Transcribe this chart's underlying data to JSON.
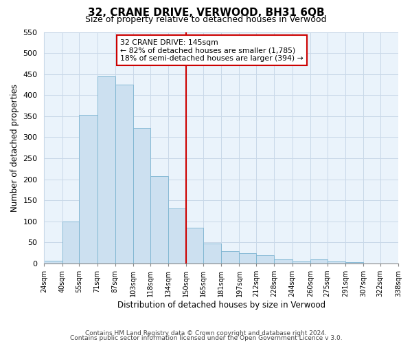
{
  "title": "32, CRANE DRIVE, VERWOOD, BH31 6QB",
  "subtitle": "Size of property relative to detached houses in Verwood",
  "xlabel": "Distribution of detached houses by size in Verwood",
  "ylabel": "Number of detached properties",
  "bar_color": "#cce0f0",
  "bar_edge_color": "#7ab3d0",
  "highlight_color": "#cc0000",
  "bar_heights": [
    7,
    100,
    353,
    445,
    425,
    322,
    208,
    130,
    85,
    48,
    29,
    25,
    19,
    10,
    5,
    10,
    5,
    3
  ],
  "x_tick_labels": [
    "24sqm",
    "40sqm",
    "55sqm",
    "71sqm",
    "87sqm",
    "103sqm",
    "118sqm",
    "134sqm",
    "150sqm",
    "165sqm",
    "181sqm",
    "197sqm",
    "212sqm",
    "228sqm",
    "244sqm",
    "260sqm",
    "275sqm",
    "291sqm",
    "307sqm",
    "322sqm",
    "338sqm"
  ],
  "x_tick_positions": [
    24,
    40,
    55,
    71,
    87,
    103,
    118,
    134,
    150,
    165,
    181,
    197,
    212,
    228,
    244,
    260,
    275,
    291,
    307,
    322,
    338
  ],
  "ylim": [
    0,
    550
  ],
  "yticks": [
    0,
    50,
    100,
    150,
    200,
    250,
    300,
    350,
    400,
    450,
    500,
    550
  ],
  "vline_x": 150,
  "annotation_title": "32 CRANE DRIVE: 145sqm",
  "annotation_line1": "← 82% of detached houses are smaller (1,785)",
  "annotation_line2": "18% of semi-detached houses are larger (394) →",
  "footer1": "Contains HM Land Registry data © Crown copyright and database right 2024.",
  "footer2": "Contains public sector information licensed under the Open Government Licence v 3.0.",
  "background_color": "#ffffff",
  "plot_bg_color": "#eaf3fb",
  "grid_color": "#c8d8e8"
}
